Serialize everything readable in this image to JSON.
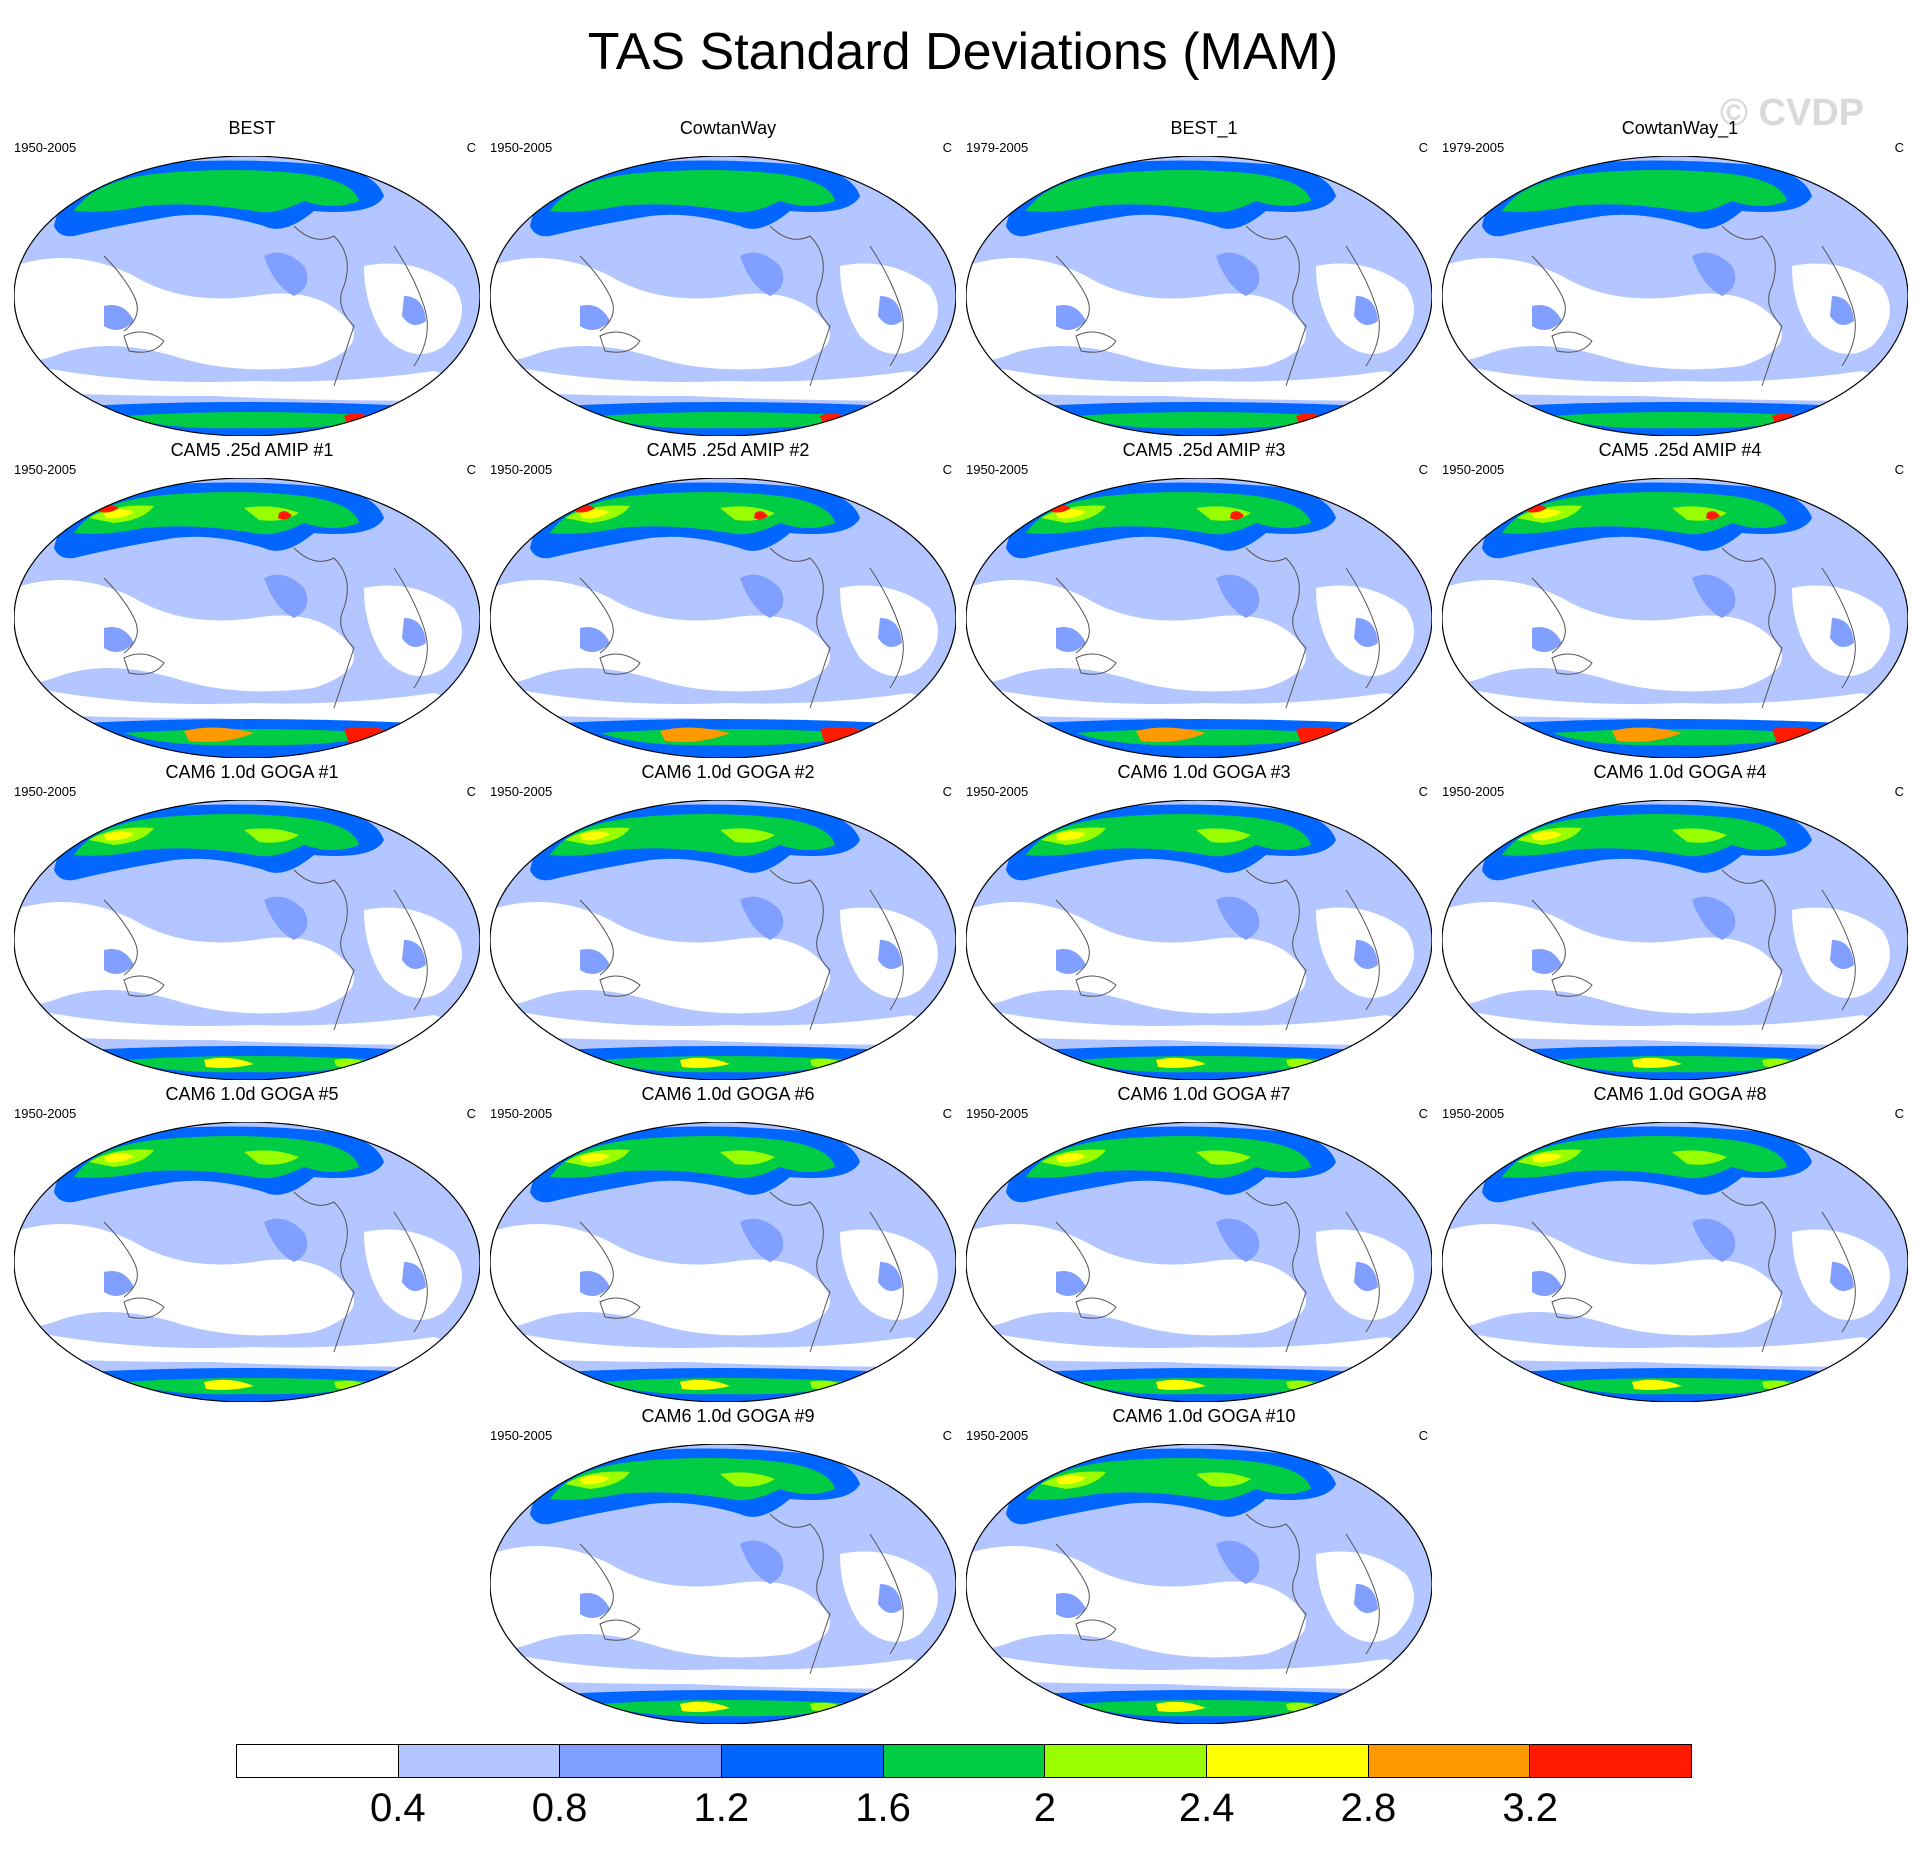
{
  "figure": {
    "title": "TAS Standard Deviations (MAM)",
    "watermark": "© CVDP"
  },
  "panels": [
    {
      "title": "BEST",
      "period": "1950-2005",
      "units": "C",
      "variant": "obs"
    },
    {
      "title": "CowtanWay",
      "period": "1950-2005",
      "units": "C",
      "variant": "obs"
    },
    {
      "title": "BEST_1",
      "period": "1979-2005",
      "units": "C",
      "variant": "obs"
    },
    {
      "title": "CowtanWay_1",
      "period": "1979-2005",
      "units": "C",
      "variant": "obs"
    },
    {
      "title": "CAM5 .25d AMIP #1",
      "period": "1950-2005",
      "units": "C",
      "variant": "amip"
    },
    {
      "title": "CAM5 .25d AMIP #2",
      "period": "1950-2005",
      "units": "C",
      "variant": "amip"
    },
    {
      "title": "CAM5 .25d AMIP #3",
      "period": "1950-2005",
      "units": "C",
      "variant": "amip"
    },
    {
      "title": "CAM5 .25d AMIP #4",
      "period": "1950-2005",
      "units": "C",
      "variant": "amip"
    },
    {
      "title": "CAM6 1.0d GOGA #1",
      "period": "1950-2005",
      "units": "C",
      "variant": "goga"
    },
    {
      "title": "CAM6 1.0d GOGA #2",
      "period": "1950-2005",
      "units": "C",
      "variant": "goga"
    },
    {
      "title": "CAM6 1.0d GOGA #3",
      "period": "1950-2005",
      "units": "C",
      "variant": "goga"
    },
    {
      "title": "CAM6 1.0d GOGA #4",
      "period": "1950-2005",
      "units": "C",
      "variant": "goga"
    },
    {
      "title": "CAM6 1.0d GOGA #5",
      "period": "1950-2005",
      "units": "C",
      "variant": "goga"
    },
    {
      "title": "CAM6 1.0d GOGA #6",
      "period": "1950-2005",
      "units": "C",
      "variant": "goga"
    },
    {
      "title": "CAM6 1.0d GOGA #7",
      "period": "1950-2005",
      "units": "C",
      "variant": "goga"
    },
    {
      "title": "CAM6 1.0d GOGA #8",
      "period": "1950-2005",
      "units": "C",
      "variant": "goga"
    },
    {
      "title": "CAM6 1.0d GOGA #9",
      "period": "1950-2005",
      "units": "C",
      "variant": "goga"
    },
    {
      "title": "CAM6 1.0d GOGA #10",
      "period": "1950-2005",
      "units": "C",
      "variant": "goga"
    }
  ],
  "colorbar": {
    "levels": [
      "0.4",
      "0.8",
      "1.2",
      "1.6",
      "2",
      "2.4",
      "2.8",
      "3.2"
    ],
    "colors": [
      "#ffffff",
      "#b3c6ff",
      "#809fff",
      "#0066ff",
      "#00cc44",
      "#99ff00",
      "#ffff00",
      "#ff9900",
      "#ff1a00"
    ]
  }
}
